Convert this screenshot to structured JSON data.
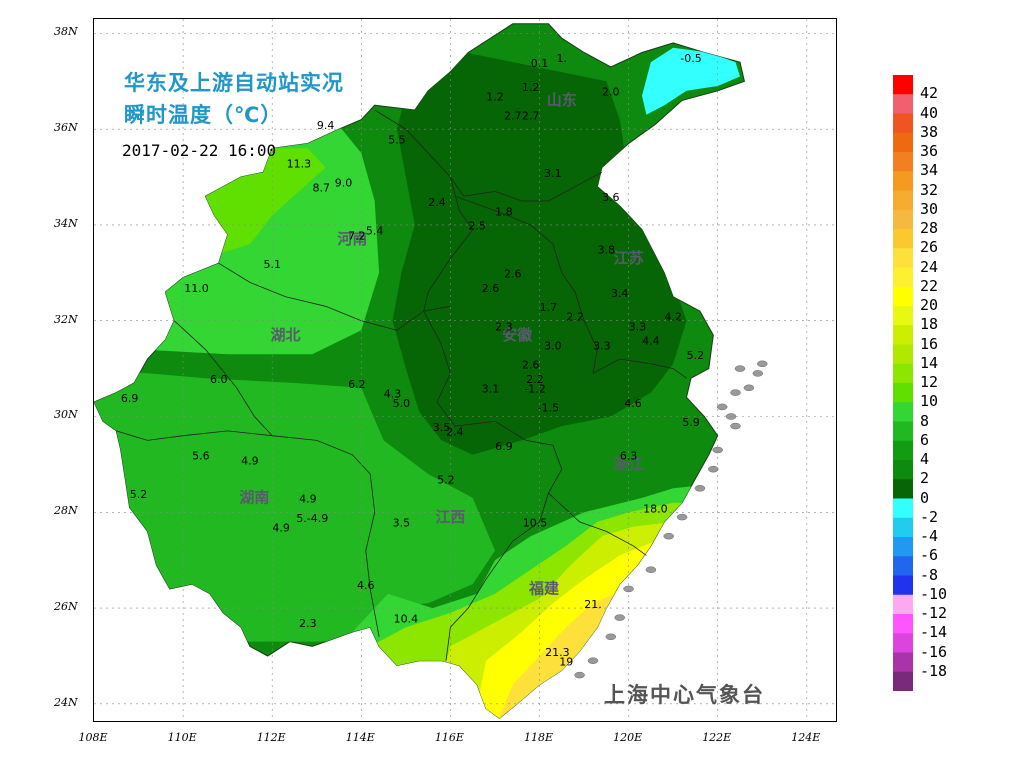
{
  "title": {
    "line1": "华东及上游自动站实况",
    "line2": "瞬时温度（℃）"
  },
  "timestamp": "2017-02-22 16:00",
  "station": "上海中心气象台",
  "lat_ticks": [
    "38N",
    "36N",
    "34N",
    "32N",
    "30N",
    "28N",
    "26N",
    "24N"
  ],
  "lon_ticks": [
    "108E",
    "110E",
    "112E",
    "114E",
    "116E",
    "118E",
    "120E",
    "122E",
    "124E"
  ],
  "provinces": [
    {
      "name": "山东",
      "lon": 118.5,
      "lat": 36.5
    },
    {
      "name": "河南",
      "lon": 113.8,
      "lat": 33.6
    },
    {
      "name": "江苏",
      "lon": 120.0,
      "lat": 33.2
    },
    {
      "name": "湖北",
      "lon": 112.3,
      "lat": 31.6
    },
    {
      "name": "安徽",
      "lon": 117.5,
      "lat": 31.6
    },
    {
      "name": "浙江",
      "lon": 120.0,
      "lat": 28.9
    },
    {
      "name": "湖南",
      "lon": 111.6,
      "lat": 28.2
    },
    {
      "name": "江西",
      "lon": 116.0,
      "lat": 27.8
    },
    {
      "name": "福建",
      "lon": 118.1,
      "lat": 26.3
    }
  ],
  "station_values": [
    {
      "v": "0.1",
      "lon": 118.0,
      "lat": 37.3
    },
    {
      "v": "1.",
      "lon": 118.5,
      "lat": 37.4
    },
    {
      "v": "-0.5",
      "lon": 121.4,
      "lat": 37.4
    },
    {
      "v": "2.0",
      "lon": 119.6,
      "lat": 36.7
    },
    {
      "v": "1.2",
      "lon": 117.0,
      "lat": 36.6
    },
    {
      "v": "1.2",
      "lon": 117.8,
      "lat": 36.8
    },
    {
      "v": "2.7",
      "lon": 117.4,
      "lat": 36.2
    },
    {
      "v": "2.7",
      "lon": 117.8,
      "lat": 36.2
    },
    {
      "v": "9.4",
      "lon": 113.2,
      "lat": 36.0
    },
    {
      "v": "5.5",
      "lon": 114.8,
      "lat": 35.7
    },
    {
      "v": "11.3",
      "lon": 112.6,
      "lat": 35.2
    },
    {
      "v": "3.1",
      "lon": 118.3,
      "lat": 35.0
    },
    {
      "v": "8.7",
      "lon": 113.1,
      "lat": 34.7
    },
    {
      "v": "9.0",
      "lon": 113.6,
      "lat": 34.8
    },
    {
      "v": "2.4",
      "lon": 115.7,
      "lat": 34.4
    },
    {
      "v": "1.8",
      "lon": 117.2,
      "lat": 34.2
    },
    {
      "v": "3.6",
      "lon": 119.6,
      "lat": 34.5
    },
    {
      "v": "2.5",
      "lon": 116.6,
      "lat": 33.9
    },
    {
      "v": "7.2",
      "lon": 113.9,
      "lat": 33.7
    },
    {
      "v": "5.4",
      "lon": 114.3,
      "lat": 33.8
    },
    {
      "v": "3.8",
      "lon": 119.5,
      "lat": 33.4
    },
    {
      "v": "5.1",
      "lon": 112.0,
      "lat": 33.1
    },
    {
      "v": "2.6",
      "lon": 117.4,
      "lat": 32.9
    },
    {
      "v": "2.6",
      "lon": 116.9,
      "lat": 32.6
    },
    {
      "v": "11.0",
      "lon": 110.3,
      "lat": 32.6
    },
    {
      "v": "3.4",
      "lon": 119.8,
      "lat": 32.5
    },
    {
      "v": "1.7",
      "lon": 118.2,
      "lat": 32.2
    },
    {
      "v": "2.2",
      "lon": 118.8,
      "lat": 32.0
    },
    {
      "v": "4.2",
      "lon": 121.0,
      "lat": 32.0
    },
    {
      "v": "3.3",
      "lon": 120.2,
      "lat": 31.8
    },
    {
      "v": "2.3",
      "lon": 117.2,
      "lat": 31.8
    },
    {
      "v": "4.4",
      "lon": 120.5,
      "lat": 31.5
    },
    {
      "v": "3.0",
      "lon": 118.3,
      "lat": 31.4
    },
    {
      "v": "3.3",
      "lon": 119.4,
      "lat": 31.4
    },
    {
      "v": "5.2",
      "lon": 121.5,
      "lat": 31.2
    },
    {
      "v": "2.6",
      "lon": 117.8,
      "lat": 31.0
    },
    {
      "v": "6.0",
      "lon": 110.8,
      "lat": 30.7
    },
    {
      "v": "6.2",
      "lon": 113.9,
      "lat": 30.6
    },
    {
      "v": "2.2",
      "lon": 117.9,
      "lat": 30.7
    },
    {
      "v": "3.1",
      "lon": 116.9,
      "lat": 30.5
    },
    {
      "v": "-1.2",
      "lon": 117.9,
      "lat": 30.5
    },
    {
      "v": "4.3",
      "lon": 114.7,
      "lat": 30.4
    },
    {
      "v": "5.0",
      "lon": 114.9,
      "lat": 30.2
    },
    {
      "v": "6.9",
      "lon": 108.8,
      "lat": 30.3
    },
    {
      "v": "-1.5",
      "lon": 118.2,
      "lat": 30.1
    },
    {
      "v": "4.6",
      "lon": 120.1,
      "lat": 30.2
    },
    {
      "v": "5.9",
      "lon": 121.4,
      "lat": 29.8
    },
    {
      "v": "3.5",
      "lon": 115.8,
      "lat": 29.7
    },
    {
      "v": "2.4",
      "lon": 116.1,
      "lat": 29.6
    },
    {
      "v": "6.9",
      "lon": 117.2,
      "lat": 29.3
    },
    {
      "v": "5.6",
      "lon": 110.4,
      "lat": 29.1
    },
    {
      "v": "4.9",
      "lon": 111.5,
      "lat": 29.0
    },
    {
      "v": "6.3",
      "lon": 120.0,
      "lat": 29.1
    },
    {
      "v": "5.2",
      "lon": 115.9,
      "lat": 28.6
    },
    {
      "v": "5.2",
      "lon": 109.0,
      "lat": 28.3
    },
    {
      "v": "4.9",
      "lon": 112.8,
      "lat": 28.2
    },
    {
      "v": "18.0",
      "lon": 120.6,
      "lat": 28.0
    },
    {
      "v": "5.-4.9",
      "lon": 112.9,
      "lat": 27.8
    },
    {
      "v": "4.9",
      "lon": 112.2,
      "lat": 27.6
    },
    {
      "v": "3.5",
      "lon": 114.9,
      "lat": 27.7
    },
    {
      "v": "10.5",
      "lon": 117.9,
      "lat": 27.7
    },
    {
      "v": "4.6",
      "lon": 114.1,
      "lat": 26.4
    },
    {
      "v": "21.",
      "lon": 119.2,
      "lat": 26.0
    },
    {
      "v": "10.4",
      "lon": 115.0,
      "lat": 25.7
    },
    {
      "v": "2.3",
      "lon": 112.8,
      "lat": 25.6
    },
    {
      "v": "21.3",
      "lon": 118.4,
      "lat": 25.0
    },
    {
      "v": "19",
      "lon": 118.6,
      "lat": 24.8
    }
  ],
  "colorbar": {
    "labels": [
      "42",
      "40",
      "38",
      "36",
      "34",
      "32",
      "30",
      "28",
      "26",
      "24",
      "22",
      "20",
      "18",
      "16",
      "14",
      "12",
      "10",
      "8",
      "6",
      "4",
      "2",
      "0",
      "-2",
      "-4",
      "-6",
      "-8",
      "-10",
      "-12",
      "-14",
      "-16",
      "-18"
    ],
    "colors": [
      "#ff0000",
      "#f0606e",
      "#ee5522",
      "#ee6a10",
      "#f08020",
      "#f59a20",
      "#f7ab30",
      "#f5b840",
      "#fcc830",
      "#fde03a",
      "#fdf030",
      "#ffff00",
      "#e8f810",
      "#ccee00",
      "#b0e800",
      "#8ce600",
      "#60e000",
      "#33d633",
      "#22b822",
      "#129c12",
      "#0e8a0e",
      "#066606",
      "#33ffff",
      "#22ccee",
      "#2299f0",
      "#2266f0",
      "#2233ee",
      "#ffaaf0",
      "#ff55ff",
      "#dd44dd",
      "#aa33aa",
      "#7a2a7a"
    ]
  }
}
